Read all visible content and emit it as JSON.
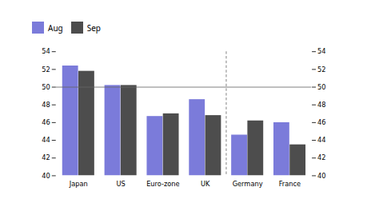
{
  "chart_data": {
    "type": "bar",
    "categories": [
      "Japan",
      "US",
      "Euro-zone",
      "UK",
      "Germany",
      "France"
    ],
    "series": [
      {
        "name": "Aug",
        "color": "#7b7bda",
        "values": [
          52.4,
          50.2,
          46.7,
          48.6,
          44.6,
          46.0
        ]
      },
      {
        "name": "Sep",
        "color": "#4d4d4d",
        "values": [
          51.8,
          50.2,
          47.0,
          46.8,
          46.2,
          43.5
        ]
      }
    ],
    "ylim": [
      40,
      54
    ],
    "yticks": [
      40,
      42,
      44,
      46,
      48,
      50,
      52,
      54
    ],
    "reference_line": 50,
    "divider_after": "UK",
    "legend": "top",
    "grid": false
  }
}
